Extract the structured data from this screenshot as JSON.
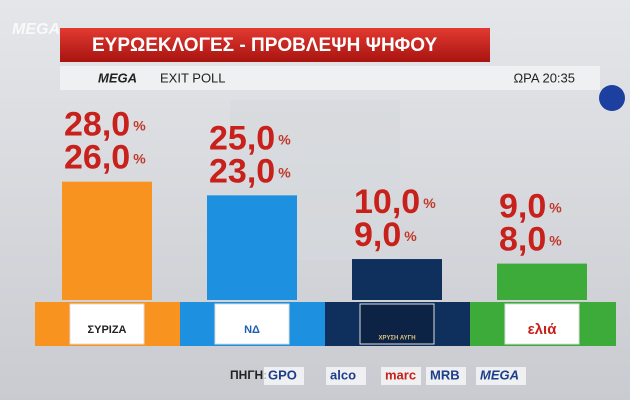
{
  "channel_logo": "MEGA",
  "title": "ΕΥΡΩΕΚΛΟΓΕΣ - ΠΡΟΒΛΕΨΗ ΨΗΦΟΥ",
  "poll_brand": "MEGA",
  "poll_label": "EXIT POLL",
  "time": "ΩΡΑ 20:35",
  "source_label": "ΠΗΓΗ:",
  "sources": [
    "GPO",
    "alco",
    "marc",
    "MRB",
    "MEGA"
  ],
  "chart_data": {
    "type": "bar",
    "categories": [
      "ΣΥΡΙΖΑ",
      "ΝΔ",
      "ΧΡΥΣΗ ΑΥΓΗ",
      "ελιά"
    ],
    "colors": [
      "#f7931e",
      "#1e90e0",
      "#0f2f5c",
      "#3cab3a"
    ],
    "percent_sign": "%",
    "series": [
      {
        "values": [
          28,
          25,
          10,
          9
        ],
        "value_labels": [
          "28,0",
          "25,0",
          "10,0",
          "9,0"
        ]
      },
      {
        "values": [
          26,
          23,
          9,
          8
        ],
        "value_labels": [
          "26,0",
          "23,0",
          "9,0",
          "8,0"
        ]
      }
    ]
  }
}
